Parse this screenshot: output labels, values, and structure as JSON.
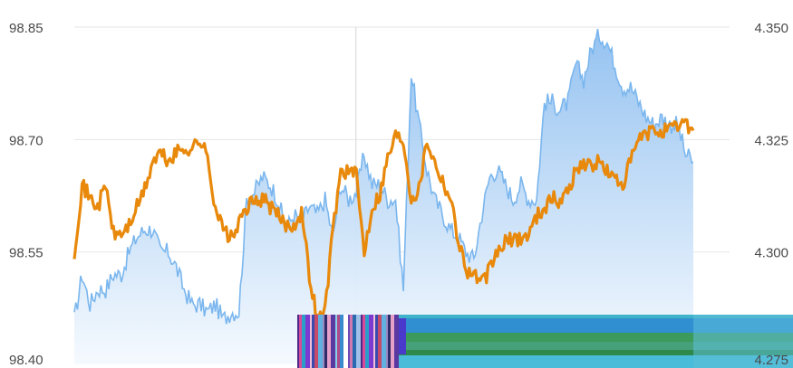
{
  "chart_data": {
    "type": "line",
    "title": "",
    "xlabel": "",
    "left_axis": {
      "ticks": [
        "98.40",
        "98.55",
        "98.70",
        "98.85"
      ],
      "ylim": [
        98.4,
        98.85
      ]
    },
    "right_axis": {
      "ticks": [
        "4.275",
        "4.300",
        "4.325",
        "4.350"
      ],
      "ylim": [
        4.275,
        4.35
      ],
      "color_last_tick": "#c0398a"
    },
    "grid": true,
    "crosshair_at": 0.455,
    "colors": {
      "area_line": "#7ab6ee",
      "area_fill_top": "#8fbff0",
      "area_fill_bottom": "#f4f9fe",
      "orange": "#e8890c"
    },
    "series": [
      {
        "axis": "left",
        "style": "area",
        "values": [
          98.46,
          98.52,
          98.48,
          98.5,
          98.5,
          98.52,
          98.52,
          98.55,
          98.57,
          98.58,
          98.58,
          98.55,
          98.55,
          98.53,
          98.5,
          98.48,
          98.48,
          98.47,
          98.48,
          98.46,
          98.47,
          98.47,
          98.62,
          98.63,
          98.65,
          98.64,
          98.62,
          98.58,
          98.6,
          98.59,
          98.61,
          98.6,
          98.62,
          98.57,
          98.64,
          98.62,
          98.63,
          98.68,
          98.64,
          98.64,
          98.62,
          98.62,
          98.5,
          98.79,
          98.72,
          98.66,
          98.62,
          98.6,
          98.58,
          98.57,
          98.55,
          98.54,
          98.6,
          98.65,
          98.66,
          98.64,
          98.62,
          98.64,
          98.62,
          98.62,
          98.75,
          98.75,
          98.74,
          98.75,
          98.8,
          98.78,
          98.82,
          98.84,
          98.83,
          98.8,
          98.77,
          98.77,
          98.75,
          98.73,
          98.72,
          98.73,
          98.72,
          98.72,
          98.68,
          98.67
        ]
      },
      {
        "axis": "right",
        "style": "line",
        "values": [
          4.3,
          4.315,
          4.312,
          4.31,
          4.315,
          4.304,
          4.304,
          4.306,
          4.31,
          4.314,
          4.32,
          4.322,
          4.32,
          4.322,
          4.323,
          4.323,
          4.325,
          4.321,
          4.31,
          4.305,
          4.303,
          4.306,
          4.31,
          4.311,
          4.312,
          4.31,
          4.308,
          4.306,
          4.306,
          4.309,
          4.295,
          4.285,
          4.287,
          4.305,
          4.318,
          4.318,
          4.317,
          4.3,
          4.31,
          4.313,
          4.321,
          4.326,
          4.325,
          4.312,
          4.314,
          4.325,
          4.32,
          4.316,
          4.312,
          4.303,
          4.296,
          4.295,
          4.293,
          4.296,
          4.3,
          4.302,
          4.303,
          4.303,
          4.304,
          4.308,
          4.31,
          4.312,
          4.311,
          4.314,
          4.318,
          4.32,
          4.319,
          4.32,
          4.318,
          4.316,
          4.315,
          4.32,
          4.325,
          4.326,
          4.327,
          4.327,
          4.327,
          4.328,
          4.329,
          4.327
        ]
      }
    ]
  }
}
